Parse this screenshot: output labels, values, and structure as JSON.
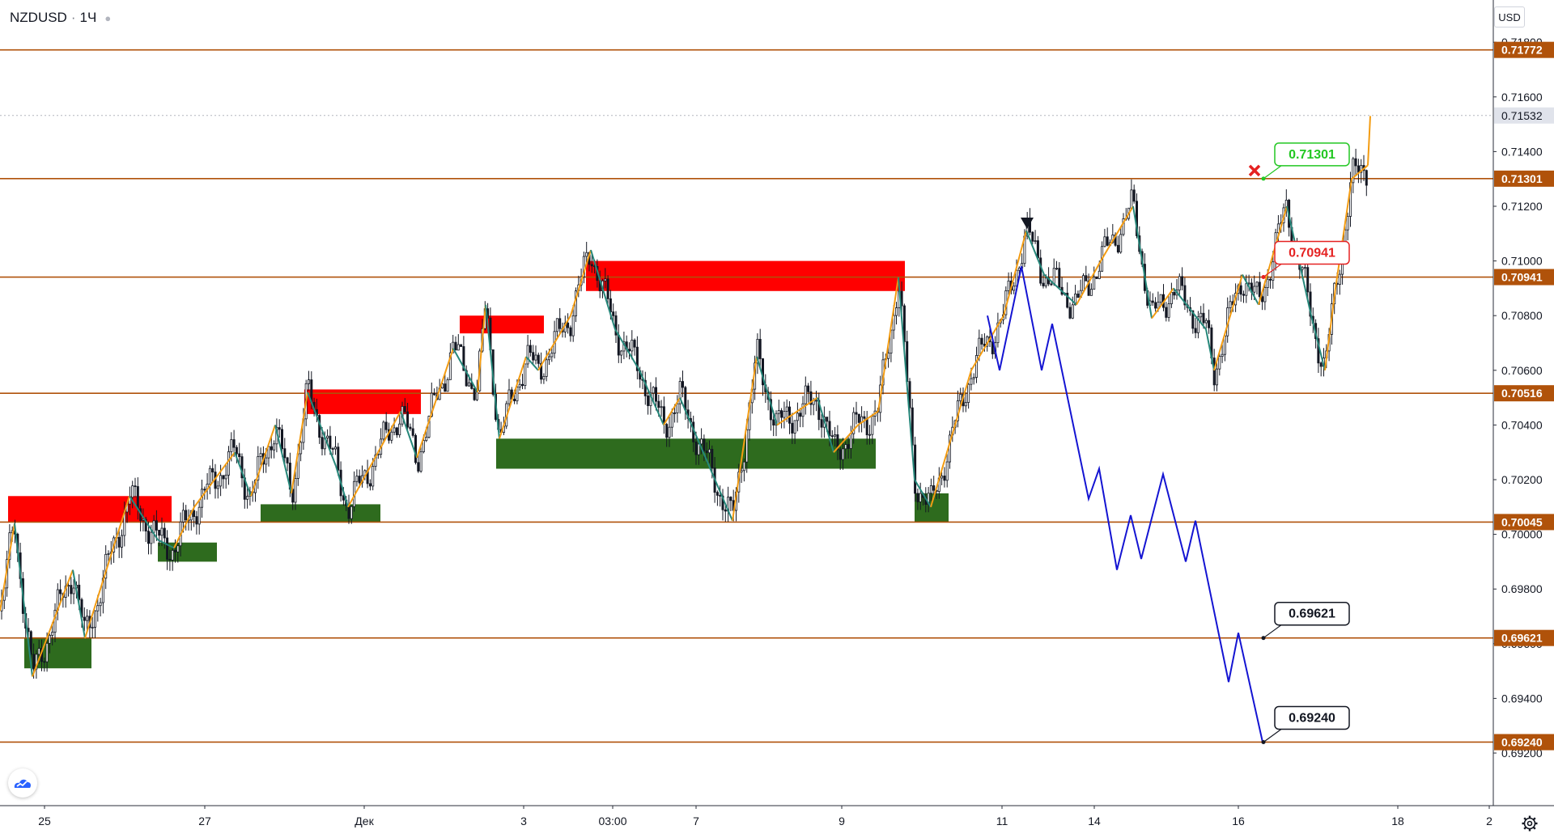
{
  "header": {
    "symbol": "NZDUSD",
    "separator": "·",
    "interval": "1Ч",
    "currency_button": "USD"
  },
  "icons": {
    "logo": "tradingview-cloud-logo",
    "settings": "gear-icon",
    "cancel_marker": "red-x-icon"
  },
  "colors": {
    "level_line": "#b0520a",
    "level_label_bg": "#b0520a",
    "supply_zone": "#ff0000",
    "demand_zone": "#2e6b1e",
    "zigzag_up": "#f39c12",
    "zigzag_down": "#26877a",
    "projection": "#1414d2",
    "candle": "#131722",
    "target_up": "#22c722",
    "target_mid": "#e52222",
    "target_down": "#131722"
  },
  "chart_data": {
    "type": "candlestick",
    "symbol": "NZDUSD",
    "interval": "1Ч",
    "y_axis": {
      "min": 0.691,
      "max": 0.719,
      "ticks": [
        "0.69200",
        "0.69400",
        "0.69600",
        "0.69800",
        "0.70000",
        "0.70200",
        "0.70400",
        "0.70600",
        "0.70800",
        "0.71000",
        "0.71200",
        "0.71400",
        "0.71600",
        "0.71800"
      ]
    },
    "x_axis": {
      "labels": [
        "25",
        "27",
        "Дек",
        "3",
        "03:00",
        "7",
        "9",
        "11",
        "14",
        "16",
        "18",
        "2"
      ]
    },
    "current_price": "0.71532",
    "horizontal_levels": [
      "0.71772",
      "0.71301",
      "0.70941",
      "0.70516",
      "0.70045",
      "0.69621",
      "0.69240"
    ],
    "supply_zones": [
      {
        "from": "24 Nov",
        "to": "26 Nov",
        "low": 0.70045,
        "high": 0.7014
      },
      {
        "from": "30 Nov",
        "to": "1 Dec",
        "low": 0.7044,
        "high": 0.7053
      },
      {
        "from": "2 Dec",
        "to": "3 Dec",
        "low": 0.70735,
        "high": 0.708
      },
      {
        "from": "4 Dec",
        "to": "10 Dec",
        "low": 0.7089,
        "high": 0.71
      }
    ],
    "demand_zones": [
      {
        "from": "24 Nov",
        "to": "25 Nov",
        "low": 0.6951,
        "high": 0.69621
      },
      {
        "from": "26 Nov",
        "to": "27 Nov",
        "low": 0.699,
        "high": 0.6997
      },
      {
        "from": "28 Nov",
        "to": "30 Nov",
        "low": 0.70045,
        "high": 0.7011
      },
      {
        "from": "2 Dec",
        "to": "9 Dec",
        "low": 0.7024,
        "high": 0.7035
      },
      {
        "from": "10 Dec",
        "to": "10 Dec",
        "low": 0.70045,
        "high": 0.7015
      }
    ],
    "annotations": [
      {
        "label": "0.71301",
        "role": "target-up"
      },
      {
        "label": "0.70941",
        "role": "target-mid"
      },
      {
        "label": "0.69621",
        "role": "target-down"
      },
      {
        "label": "0.69240",
        "role": "target-down"
      }
    ],
    "grid": false
  }
}
